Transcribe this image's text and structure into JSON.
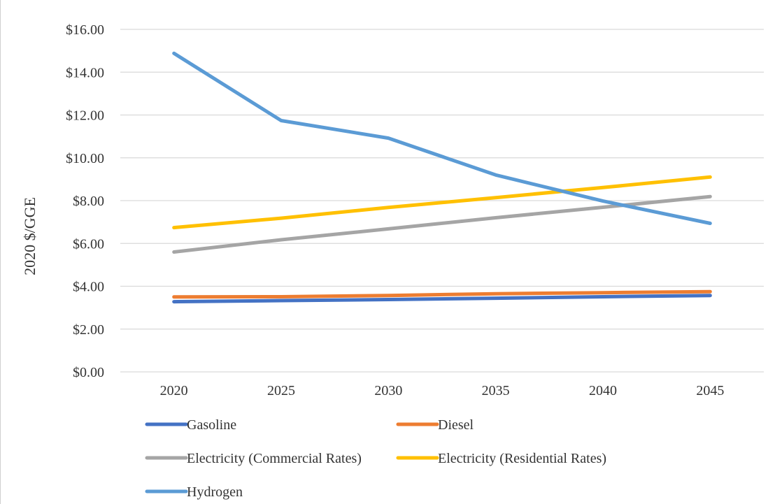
{
  "chart_data": {
    "type": "line",
    "title": "",
    "xlabel": "",
    "ylabel": "2020 $/GGE",
    "x": [
      2020,
      2025,
      2030,
      2035,
      2040,
      2045
    ],
    "x_tick_labels": [
      "2020",
      "2025",
      "2030",
      "2035",
      "2040",
      "2045"
    ],
    "ylim": [
      0,
      16
    ],
    "y_ticks": [
      0,
      2,
      4,
      6,
      8,
      10,
      12,
      14,
      16
    ],
    "y_tick_labels": [
      "$0.00",
      "$2.00",
      "$4.00",
      "$6.00",
      "$8.00",
      "$10.00",
      "$12.00",
      "$14.00",
      "$16.00"
    ],
    "grid": true,
    "legend_position": "bottom",
    "series": [
      {
        "name": "Gasoline",
        "color": "#4472C4",
        "values": [
          3.28,
          3.33,
          3.38,
          3.44,
          3.51,
          3.57
        ]
      },
      {
        "name": "Diesel",
        "color": "#ED7D31",
        "values": [
          3.5,
          3.51,
          3.57,
          3.65,
          3.7,
          3.75
        ]
      },
      {
        "name": "Electricity (Commercial Rates)",
        "color": "#A5A5A5",
        "values": [
          5.6,
          6.17,
          6.68,
          7.2,
          7.69,
          8.19
        ]
      },
      {
        "name": "Electricity (Residential Rates)",
        "color": "#FFC000",
        "values": [
          6.74,
          7.18,
          7.68,
          8.14,
          8.61,
          9.1
        ]
      },
      {
        "name": "Hydrogen",
        "color": "#5B9BD5",
        "values": [
          14.88,
          11.74,
          10.92,
          9.2,
          7.98,
          6.94
        ]
      }
    ]
  }
}
